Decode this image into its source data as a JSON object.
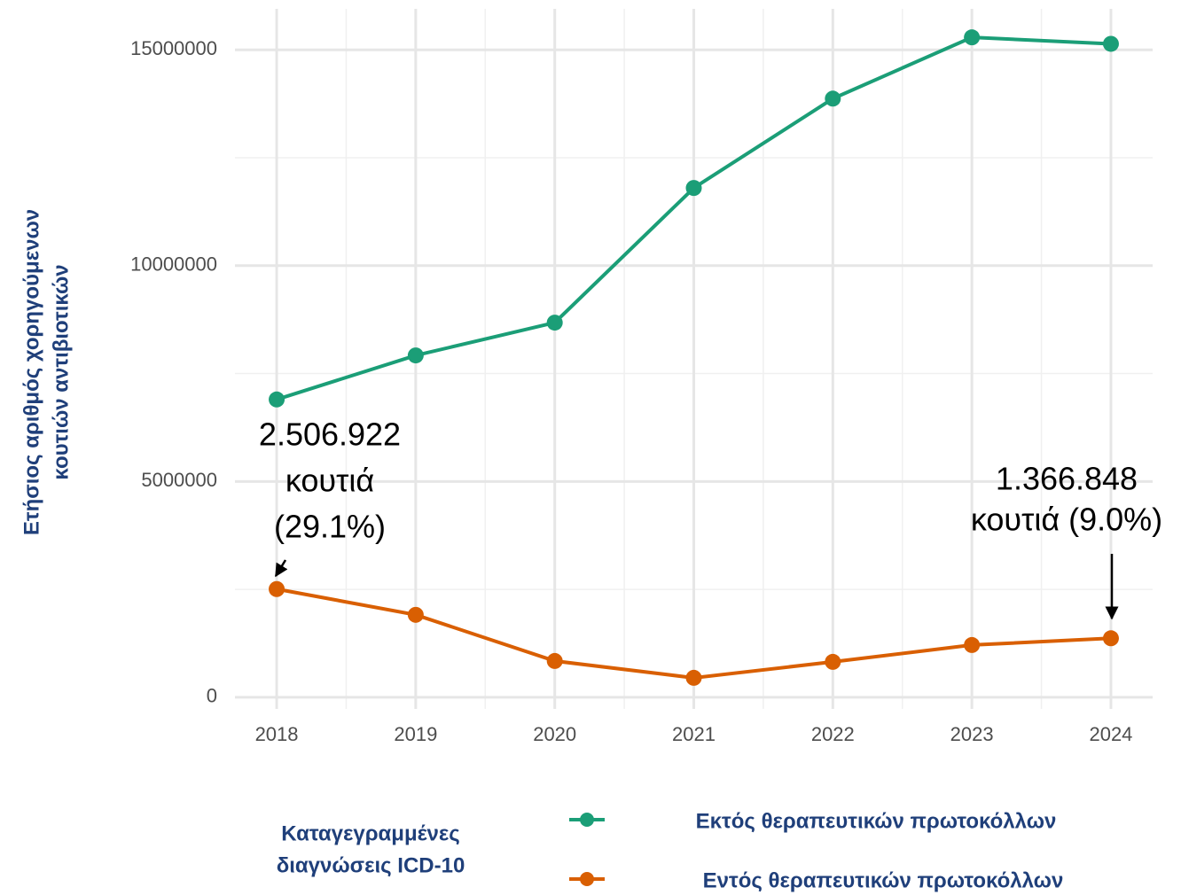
{
  "chart_data": {
    "type": "line",
    "y_axis_label": [
      "Ετήσιος αριθμός χορηγούμενων",
      "κουτιών αντιβιοτικών"
    ],
    "x": [
      2018,
      2019,
      2020,
      2021,
      2022,
      2023,
      2024
    ],
    "xlim": [
      2017.7,
      2024.3
    ],
    "xticks": [
      2018,
      2019,
      2020,
      2021,
      2022,
      2023,
      2024
    ],
    "ylim": [
      -270000,
      15950000
    ],
    "yticks": [
      0,
      5000000,
      10000000,
      15000000
    ],
    "grid": true,
    "legend_title": [
      "Καταγεγραμμένες",
      "διαγνώσεις ICD-10"
    ],
    "legend_position": "bottom",
    "series": [
      {
        "name": "Εκτός θεραπευτικών πρωτοκόλλων",
        "color": "#1b9e77",
        "values": [
          6900000,
          7920000,
          8680000,
          11800000,
          13870000,
          15290000,
          15140000
        ]
      },
      {
        "name": "Εντός θεραπευτικών πρωτοκόλλων",
        "color": "#d95f02",
        "values": [
          2506922,
          1910000,
          840000,
          450000,
          820000,
          1210000,
          1366848
        ]
      }
    ],
    "annotations": [
      {
        "lines": [
          "2.506.922",
          "κουτιά",
          "(29.1%)"
        ]
      },
      {
        "lines": [
          "1.366.848",
          "κουτιά (9.0%)"
        ]
      }
    ]
  }
}
